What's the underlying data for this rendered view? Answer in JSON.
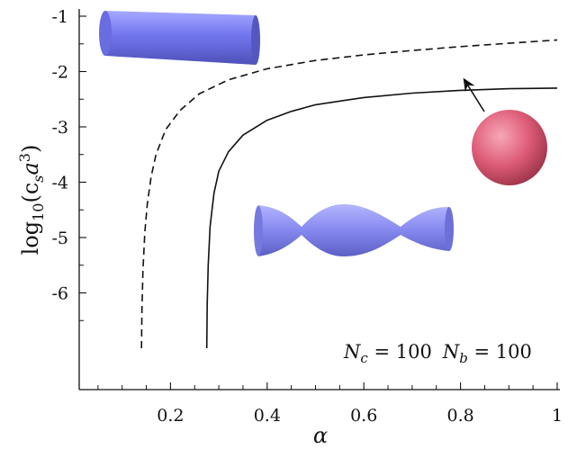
{
  "chart_data": {
    "type": "line",
    "title": "",
    "xlabel": "α",
    "ylabel_parts": {
      "pre": "log",
      "sub": "10",
      "mid": "(c",
      "sub2": "s",
      "mid2": "a",
      "sup": "3",
      "post": ")"
    },
    "xlim": [
      0.0,
      1.0
    ],
    "ylim": [
      -7.0,
      -0.9
    ],
    "x_ticks": [
      {
        "value": 0.2,
        "label": "0.2"
      },
      {
        "value": 0.4,
        "label": "0.4"
      },
      {
        "value": 0.6,
        "label": "0.6"
      },
      {
        "value": 0.8,
        "label": "0.8"
      },
      {
        "value": 1.0,
        "label": "1"
      }
    ],
    "y_ticks": [
      {
        "value": -1,
        "label": "-1"
      },
      {
        "value": -2,
        "label": "-2"
      },
      {
        "value": -3,
        "label": "-3"
      },
      {
        "value": -4,
        "label": "-4"
      },
      {
        "value": -5,
        "label": "-5"
      },
      {
        "value": -6,
        "label": "-6"
      }
    ],
    "series": [
      {
        "style": "dashed",
        "color": "#111111",
        "x": [
          0.14,
          0.141,
          0.143,
          0.147,
          0.152,
          0.16,
          0.17,
          0.19,
          0.22,
          0.26,
          0.32,
          0.4,
          0.5,
          0.6,
          0.7,
          0.8,
          0.9,
          1.0
        ],
        "y": [
          -7.0,
          -6.3,
          -5.6,
          -4.9,
          -4.4,
          -3.9,
          -3.5,
          -3.05,
          -2.7,
          -2.4,
          -2.15,
          -1.95,
          -1.8,
          -1.7,
          -1.62,
          -1.55,
          -1.49,
          -1.43
        ]
      },
      {
        "style": "solid",
        "color": "#111111",
        "x": [
          0.275,
          0.276,
          0.278,
          0.282,
          0.29,
          0.3,
          0.32,
          0.35,
          0.4,
          0.45,
          0.5,
          0.6,
          0.7,
          0.8,
          0.9,
          1.0
        ],
        "y": [
          -7.0,
          -6.2,
          -5.5,
          -4.8,
          -4.2,
          -3.8,
          -3.45,
          -3.15,
          -2.88,
          -2.72,
          -2.6,
          -2.47,
          -2.39,
          -2.34,
          -2.31,
          -2.3
        ]
      }
    ],
    "annotation": {
      "nc_label": "N",
      "nc_sub": "c",
      "nc_value": " = 100",
      "nb_label": "N",
      "nb_sub": "b",
      "nb_value": " = 100"
    },
    "shapes": [
      {
        "name": "cylinder",
        "color": "#7b7ff0"
      },
      {
        "name": "sphere",
        "color": "#e0607a"
      },
      {
        "name": "pearling-tube",
        "color": "#8a8cf0"
      }
    ],
    "grid": false,
    "legend": "none"
  }
}
